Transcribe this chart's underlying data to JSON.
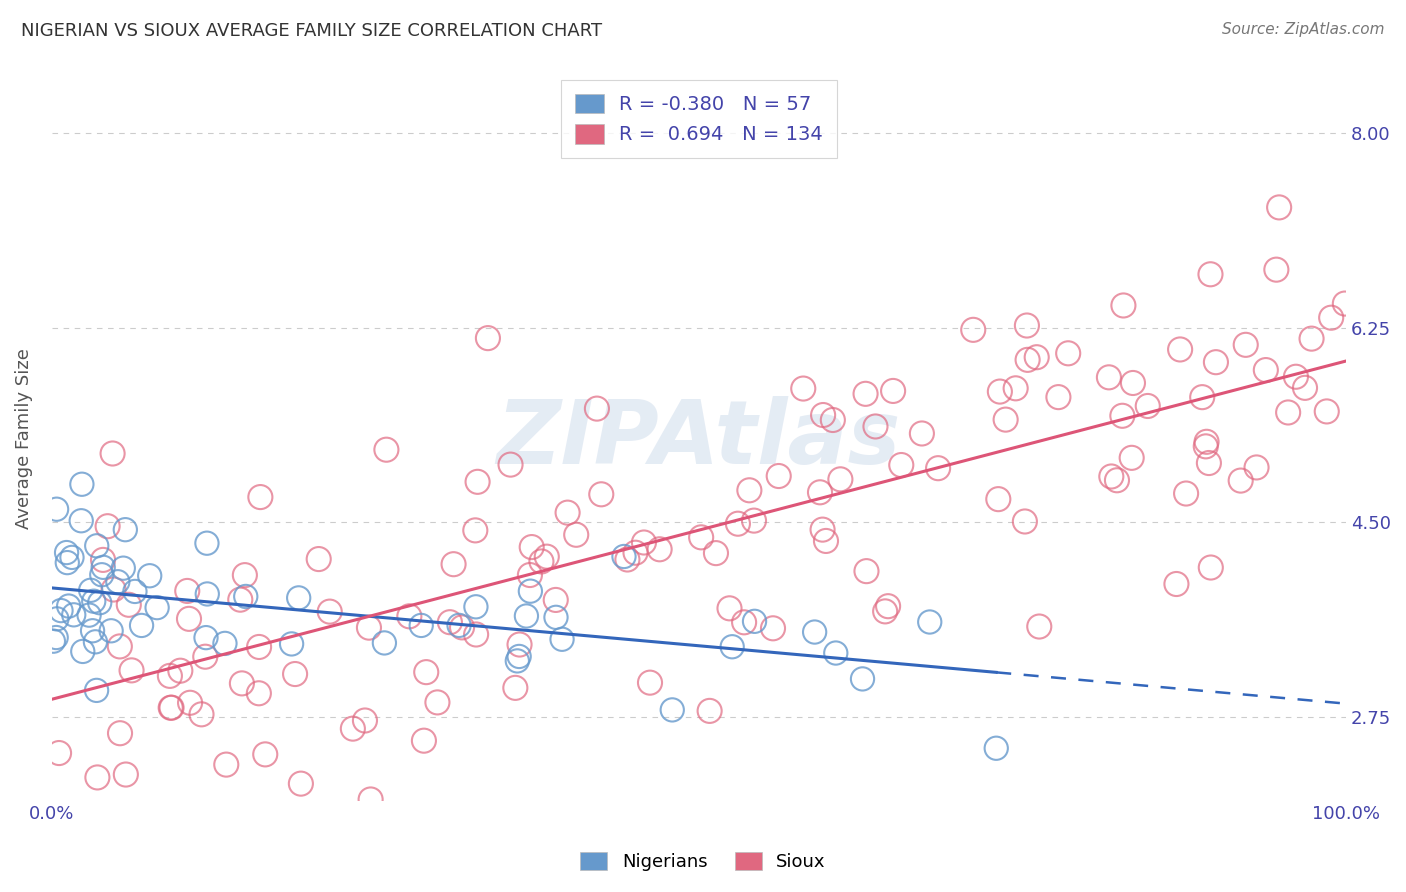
{
  "title": "NIGERIAN VS SIOUX AVERAGE FAMILY SIZE CORRELATION CHART",
  "source": "Source: ZipAtlas.com",
  "xlabel": "",
  "ylabel": "Average Family Size",
  "xlim": [
    0.0,
    100.0
  ],
  "ylim": [
    2.0,
    8.5
  ],
  "yticks": [
    2.75,
    4.5,
    6.25,
    8.0
  ],
  "xticks": [
    0.0,
    100.0
  ],
  "xticklabels": [
    "0.0%",
    "100.0%"
  ],
  "background_color": "#ffffff",
  "grid_color": "#cccccc",
  "watermark": "ZIPAtlas",
  "nigerian_R": -0.38,
  "nigerian_N": 57,
  "sioux_R": 0.694,
  "sioux_N": 134,
  "nigerian_color": "#6699cc",
  "sioux_color": "#e06880",
  "nigerian_line_color": "#3366bb",
  "sioux_line_color": "#dd5577",
  "title_color": "#333333",
  "tick_color": "#4444aa",
  "legend_text_color": "#4444aa",
  "ylabel_color": "#555555"
}
